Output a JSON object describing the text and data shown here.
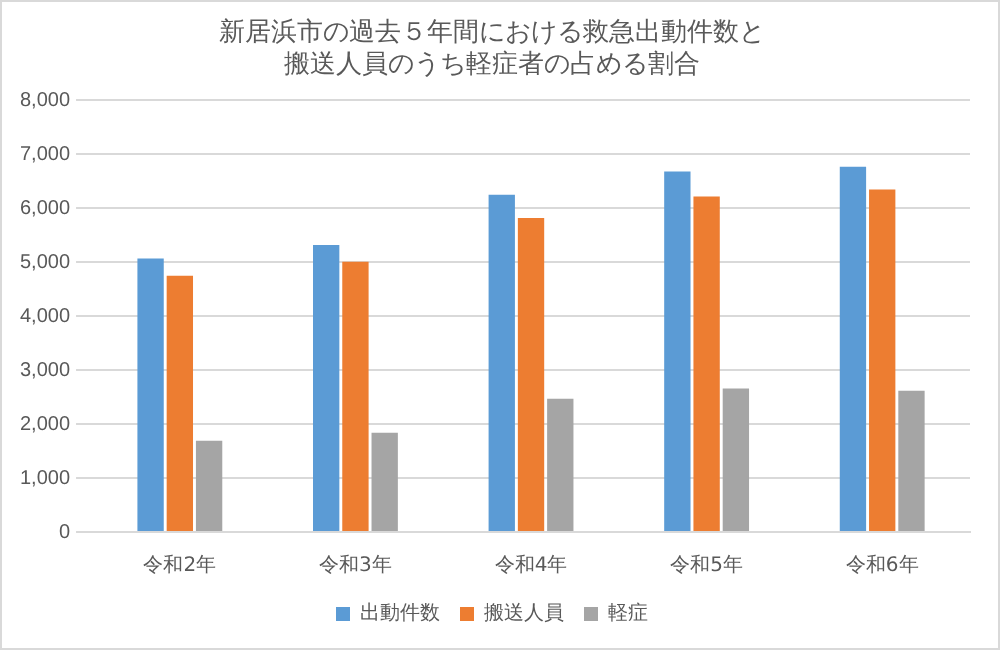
{
  "chart_data": {
    "type": "bar",
    "title": [
      "新居浜市の過去５年間における救急出動件数と",
      "搬送人員のうち軽症者の占める割合"
    ],
    "categories": [
      "令和2年",
      "令和3年",
      "令和4年",
      "令和5年",
      "令和6年"
    ],
    "series": [
      {
        "name": "出動件数",
        "color": "#5b9bd5",
        "values": [
          5070,
          5320,
          6250,
          6680,
          6770
        ]
      },
      {
        "name": "搬送人員",
        "color": "#ed7d31",
        "values": [
          4750,
          5010,
          5820,
          6220,
          6350
        ]
      },
      {
        "name": "軽症",
        "color": "#a5a5a5",
        "values": [
          1690,
          1840,
          2470,
          2660,
          2620
        ]
      }
    ],
    "ylim": [
      0,
      8000
    ],
    "yticks": [
      0,
      {
        "value": 1000,
        "label": "1,000"
      },
      {
        "value": 2000,
        "label": "2,000"
      },
      {
        "value": 3000,
        "label": "3,000"
      },
      {
        "value": 4000,
        "label": "4,000"
      },
      {
        "value": 5000,
        "label": "5,000"
      },
      {
        "value": 6000,
        "label": "6,000"
      },
      {
        "value": 7000,
        "label": "7,000"
      },
      {
        "value": 8000,
        "label": "8,000"
      }
    ],
    "grid": "y",
    "legend": "bottom"
  }
}
